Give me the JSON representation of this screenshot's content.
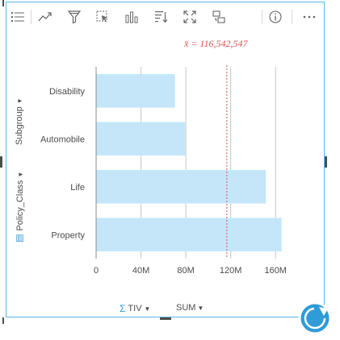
{
  "toolbar": {
    "icons": [
      "legend-list-icon",
      "chart-type-icon",
      "filter-icon",
      "selection-icon",
      "visualization-type-icon",
      "sort-icon",
      "maximize-icon",
      "flip-card-icon",
      "info-icon",
      "more-icon"
    ]
  },
  "mean_label": "x̄ = 116,542,547",
  "y_axis": {
    "field": "Policy_Class",
    "subgroup": "Subgroup"
  },
  "x_axis": {
    "field": "TIV",
    "aggregation": "SUM"
  },
  "colors": {
    "bar": "#c5e6f9",
    "mean_line": "#d9534f",
    "accent": "#2f9bd9",
    "border": "#5bb6e8",
    "grid": "#c7c7c7"
  },
  "chart_data": {
    "type": "bar",
    "orientation": "horizontal",
    "categories": [
      "Disability",
      "Automobile",
      "Life",
      "Property"
    ],
    "values": [
      70000000,
      79000000,
      151000000,
      165000000
    ],
    "mean": 116542547,
    "xlim": [
      0,
      180000000
    ],
    "xticks": [
      0,
      40000000,
      80000000,
      120000000,
      160000000
    ],
    "xtick_labels": [
      "0",
      "40M",
      "80M",
      "120M",
      "160M"
    ],
    "grid": true
  }
}
